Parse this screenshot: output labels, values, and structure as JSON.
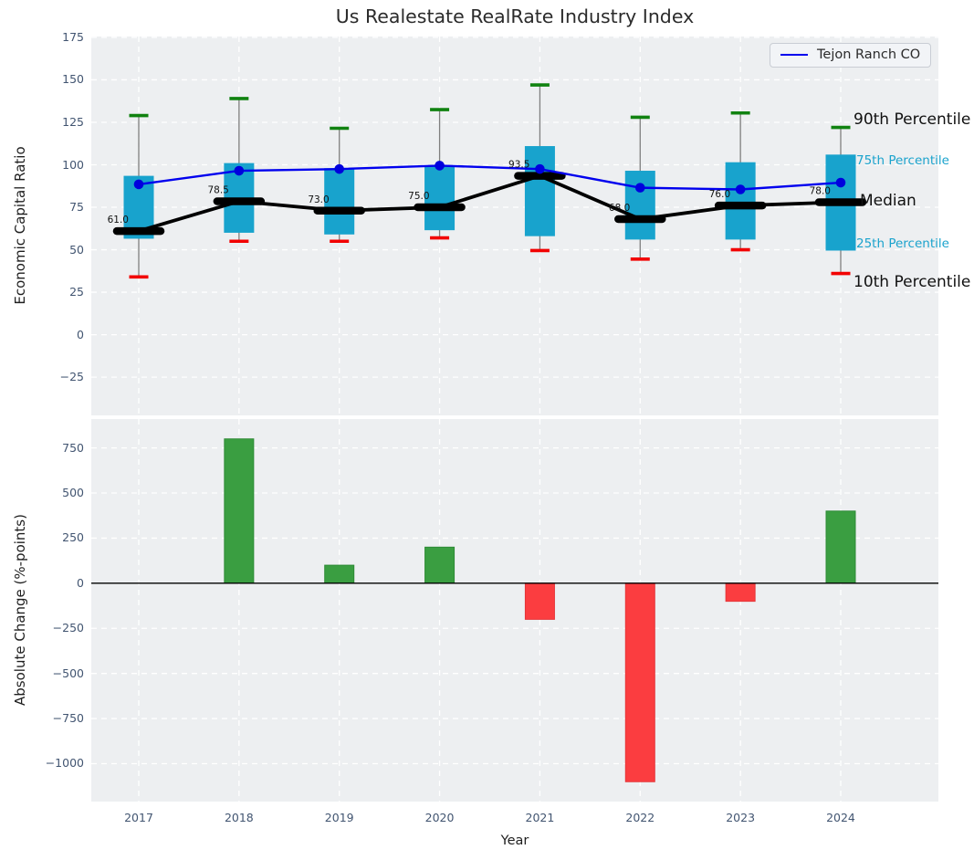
{
  "title": "Us Realestate RealRate Industry Index",
  "legend": {
    "label": "Tejon Ranch CO"
  },
  "annotations": {
    "p90": "90th Percentile",
    "p75": "75th Percentile",
    "median": "Median",
    "p25": "25th Percentile",
    "p10": "10th Percentile"
  },
  "colors": {
    "box_fill": "#18a3cd",
    "company_line": "#0000ee",
    "company_dot": "#0000dd",
    "p90_cap": "#108210",
    "p10_cap": "#f20000",
    "whisker": "#7f7f7f",
    "median_line": "#000000",
    "bar_positive": "#3a9e41",
    "bar_positive_edge": "#2e8b36",
    "bar_negative": "#fb3d40",
    "bar_negative_edge": "#e53538",
    "plot_bg": "#edeff1",
    "tick_text": "#425571",
    "annotation_cyan": "#1ba3cd"
  },
  "chart_data": [
    {
      "type": "boxplot",
      "title": "Us Realestate RealRate Industry Index",
      "ylabel": "Economic Capital Ratio",
      "categories": [
        "2017",
        "2018",
        "2019",
        "2020",
        "2021",
        "2022",
        "2023",
        "2024"
      ],
      "series": [
        {
          "name": "90th Percentile",
          "values": [
            129,
            139,
            121.5,
            132.5,
            147,
            128,
            130.5,
            122
          ]
        },
        {
          "name": "75th Percentile",
          "values": [
            93.5,
            101,
            98,
            99.5,
            111,
            96.5,
            101.5,
            106
          ]
        },
        {
          "name": "Median",
          "values": [
            61,
            78.5,
            73,
            75,
            93.5,
            68,
            76,
            78
          ]
        },
        {
          "name": "25th Percentile",
          "values": [
            56.5,
            60,
            59,
            61.5,
            58,
            56,
            56,
            49.5
          ]
        },
        {
          "name": "10th Percentile",
          "values": [
            34,
            55,
            55,
            57,
            49.5,
            44.5,
            50,
            36
          ]
        },
        {
          "name": "Tejon Ranch CO",
          "values": [
            88.5,
            96.5,
            97.5,
            99.5,
            97.5,
            86.5,
            85.5,
            89.5
          ]
        }
      ],
      "median_labels": [
        "61.0",
        "78.5",
        "73.0",
        "75.0",
        "93.5",
        "68.0",
        "76.0",
        "78.0"
      ],
      "yticks": {
        "values": [
          175,
          150,
          125,
          100,
          75,
          50,
          25,
          0,
          -25
        ],
        "labels": [
          "175",
          "150",
          "125",
          "100",
          "75",
          "50",
          "25",
          "0",
          "−25"
        ]
      },
      "ylim": [
        -47.5,
        175.5
      ],
      "grid": true,
      "legend_position": "upper right"
    },
    {
      "type": "bar",
      "ylabel": "Absolute Change (%-points)",
      "xlabel": "Year",
      "categories": [
        "2017",
        "2018",
        "2019",
        "2020",
        "2021",
        "2022",
        "2023",
        "2024"
      ],
      "values": [
        0,
        800,
        100,
        200,
        -200,
        -1100,
        -100,
        400
      ],
      "yticks": {
        "values": [
          750,
          500,
          250,
          0,
          -250,
          -500,
          -750,
          -1000
        ],
        "labels": [
          "750",
          "500",
          "250",
          "0",
          "−250",
          "−500",
          "−750",
          "−1000"
        ]
      },
      "ylim": [
        -1210,
        910
      ],
      "grid": true
    }
  ]
}
